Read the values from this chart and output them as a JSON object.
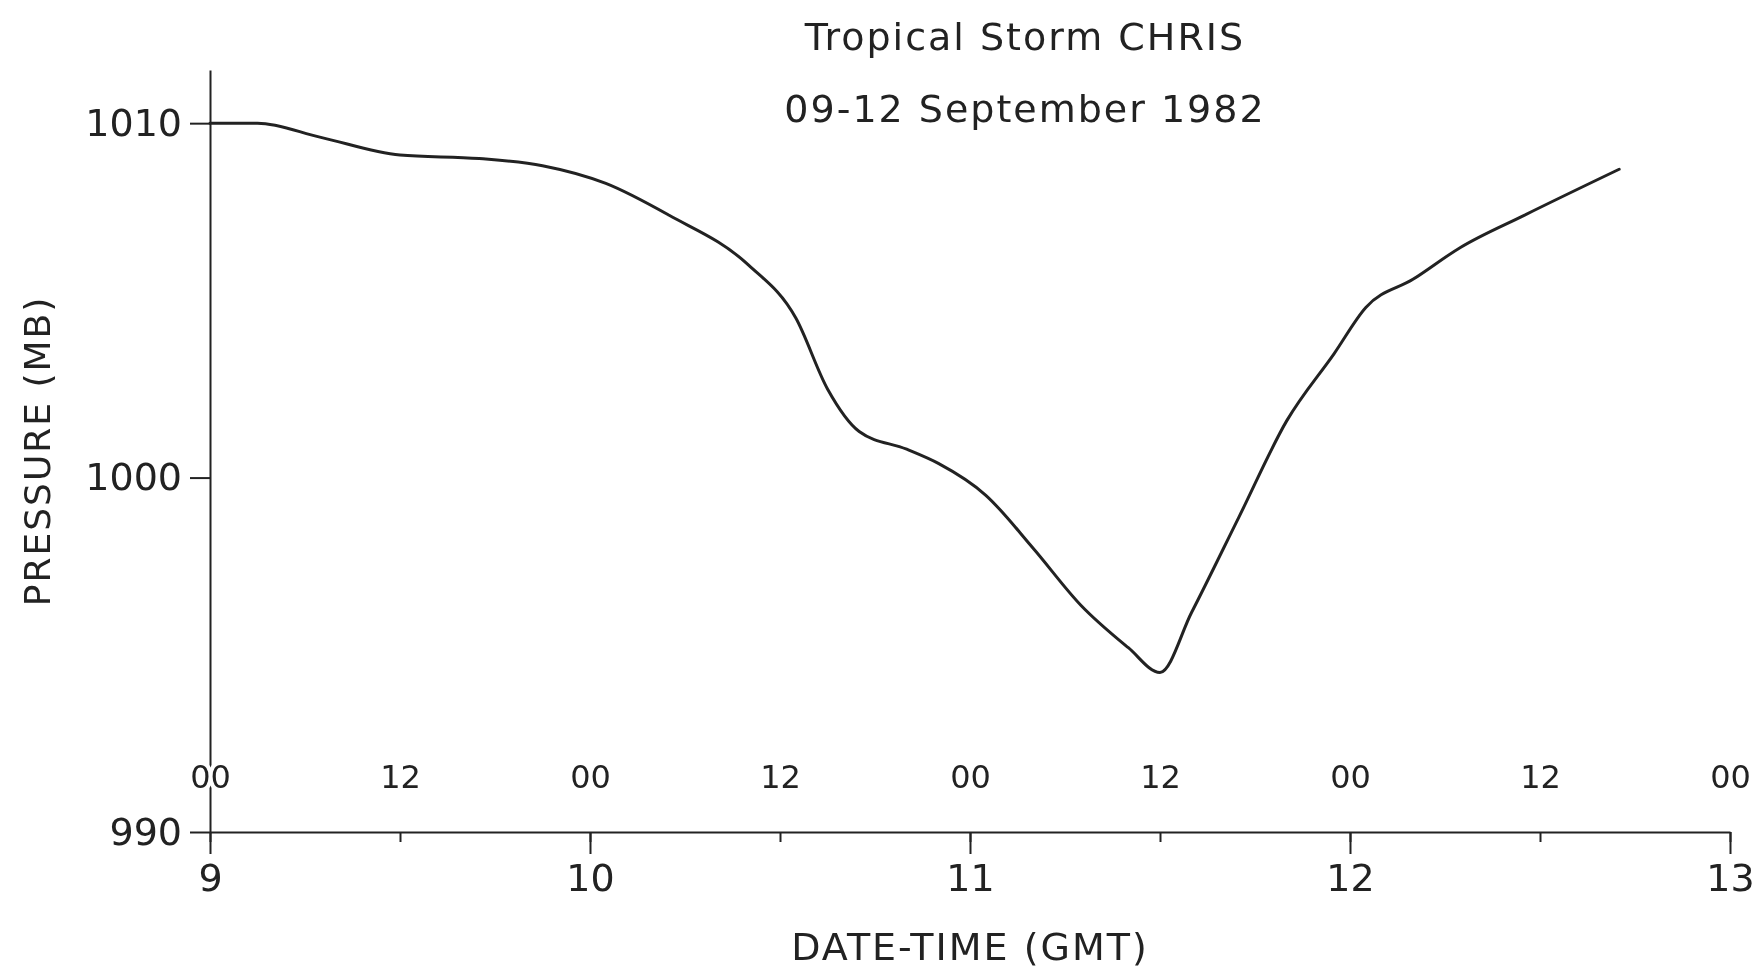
{
  "chart_data": {
    "type": "line",
    "title": "Tropical Storm CHRIS",
    "subtitle": "09-12 September 1982",
    "xlabel": "DATE-TIME (GMT)",
    "ylabel": "PRESSURE (MB)",
    "x": [
      "1982-09-09T00:00",
      "1982-09-09T03:00",
      "1982-09-09T07:00",
      "1982-09-09T12:00",
      "1982-09-09T17:00",
      "1982-09-09T21:00",
      "1982-09-10T01:00",
      "1982-09-10T05:00",
      "1982-09-10T10:00",
      "1982-09-10T13:00",
      "1982-09-10T15:00",
      "1982-09-10T17:00",
      "1982-09-10T20:00",
      "1982-09-10T22:00",
      "1982-09-11T01:00",
      "1982-09-11T04:00",
      "1982-09-11T07:00",
      "1982-09-11T10:00",
      "1982-09-11T12:00",
      "1982-09-11T14:00",
      "1982-09-11T17:00",
      "1982-09-11T20:00",
      "1982-09-11T23:00",
      "1982-09-12T01:00",
      "1982-09-12T04:00",
      "1982-09-12T07:00",
      "1982-09-12T11:00",
      "1982-09-12T17:00"
    ],
    "series": [
      {
        "color": "#222222",
        "values": [
          1010.0,
          1010.0,
          1009.6,
          1009.1,
          1009.0,
          1008.8,
          1008.3,
          1007.4,
          1006.0,
          1004.5,
          1002.5,
          1001.3,
          1000.8,
          1000.4,
          999.5,
          998.0,
          996.4,
          995.2,
          994.5,
          996.2,
          998.9,
          1001.6,
          1003.5,
          1004.8,
          1005.6,
          1006.5,
          1007.4,
          1008.7
        ]
      }
    ],
    "xlim": [
      "1982-09-09T00:00",
      "1982-09-13T00:00"
    ],
    "xticks": [
      {
        "value": "1982-09-09T00:00",
        "label": "9"
      },
      {
        "value": "1982-09-10T00:00",
        "label": "10"
      },
      {
        "value": "1982-09-11T00:00",
        "label": "11"
      },
      {
        "value": "1982-09-12T00:00",
        "label": "12"
      },
      {
        "value": "1982-09-13T00:00",
        "label": "13"
      }
    ],
    "x2lim": [
      "1982-09-09T00:00",
      "1982-09-13T00:00"
    ],
    "x2ticks": [
      {
        "value": "1982-09-09T00:00",
        "label": "00"
      },
      {
        "value": "1982-09-09T12:00",
        "label": "12"
      },
      {
        "value": "1982-09-10T00:00",
        "label": "00"
      },
      {
        "value": "1982-09-10T12:00",
        "label": "12"
      },
      {
        "value": "1982-09-11T00:00",
        "label": "00"
      },
      {
        "value": "1982-09-11T12:00",
        "label": "12"
      },
      {
        "value": "1982-09-12T00:00",
        "label": "00"
      },
      {
        "value": "1982-09-12T12:00",
        "label": "12"
      },
      {
        "value": "1982-09-13T00:00",
        "label": "00"
      }
    ],
    "ylim": [
      990,
      1011.5
    ],
    "yticks": [
      990,
      1000,
      1010
    ],
    "grid": false,
    "marker": "none",
    "line_style": "solid"
  }
}
